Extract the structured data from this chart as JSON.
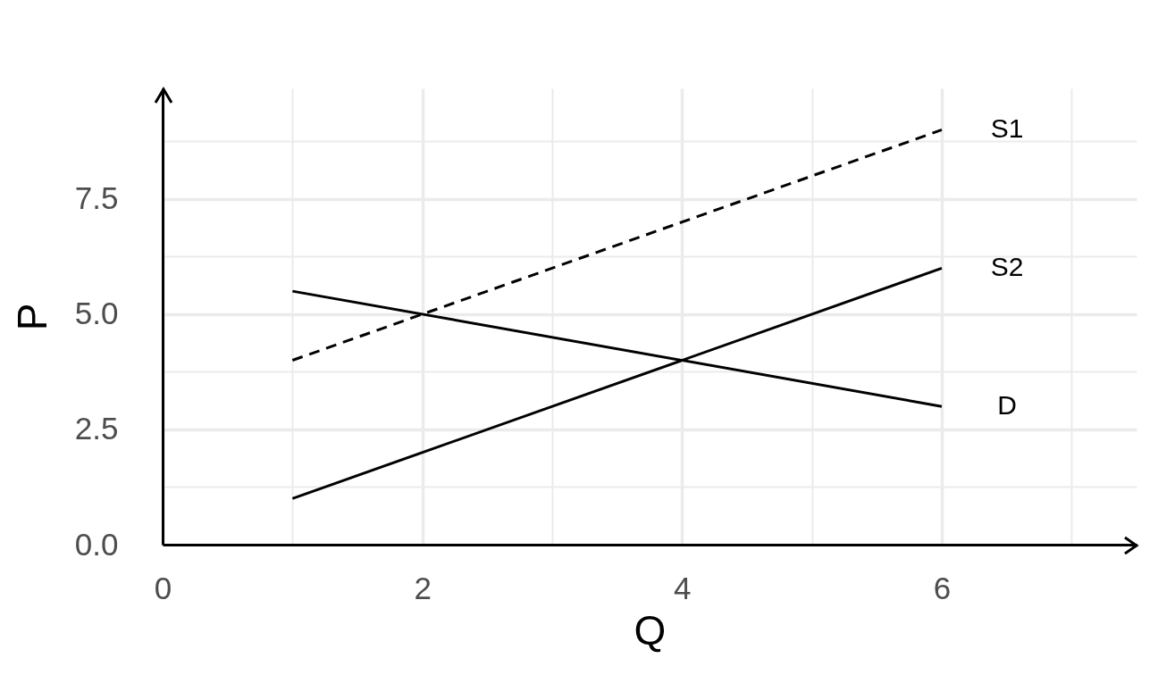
{
  "chart_data": {
    "type": "line",
    "xlabel": "Q",
    "ylabel": "P",
    "x": [
      1,
      6
    ],
    "series": [
      {
        "name": "S1",
        "color": "#000000",
        "values": [
          4,
          9
        ],
        "line_style": "dashed"
      },
      {
        "name": "S2",
        "color": "#000000",
        "values": [
          1,
          6
        ]
      },
      {
        "name": "D",
        "color": "#000000",
        "values": [
          5.5,
          3
        ]
      }
    ],
    "xlim": [
      0,
      7.5
    ],
    "ylim": [
      0,
      9.9
    ],
    "xticks": [
      0,
      {
        "value": 1,
        "label": null
      },
      2,
      {
        "value": 3,
        "label": null
      },
      4,
      {
        "value": 5,
        "label": null
      },
      6,
      {
        "value": 7,
        "label": null
      }
    ],
    "yticks": [
      {
        "value": 0,
        "label": "0.0"
      },
      {
        "value": 1.25,
        "label": null
      },
      2.5,
      {
        "value": 3.75,
        "label": null
      },
      {
        "value": 5,
        "label": "5.0"
      },
      {
        "value": 6.25,
        "label": null
      },
      7.5,
      {
        "value": 8.75,
        "label": null
      }
    ],
    "grid": true,
    "line_style": "solid"
  }
}
